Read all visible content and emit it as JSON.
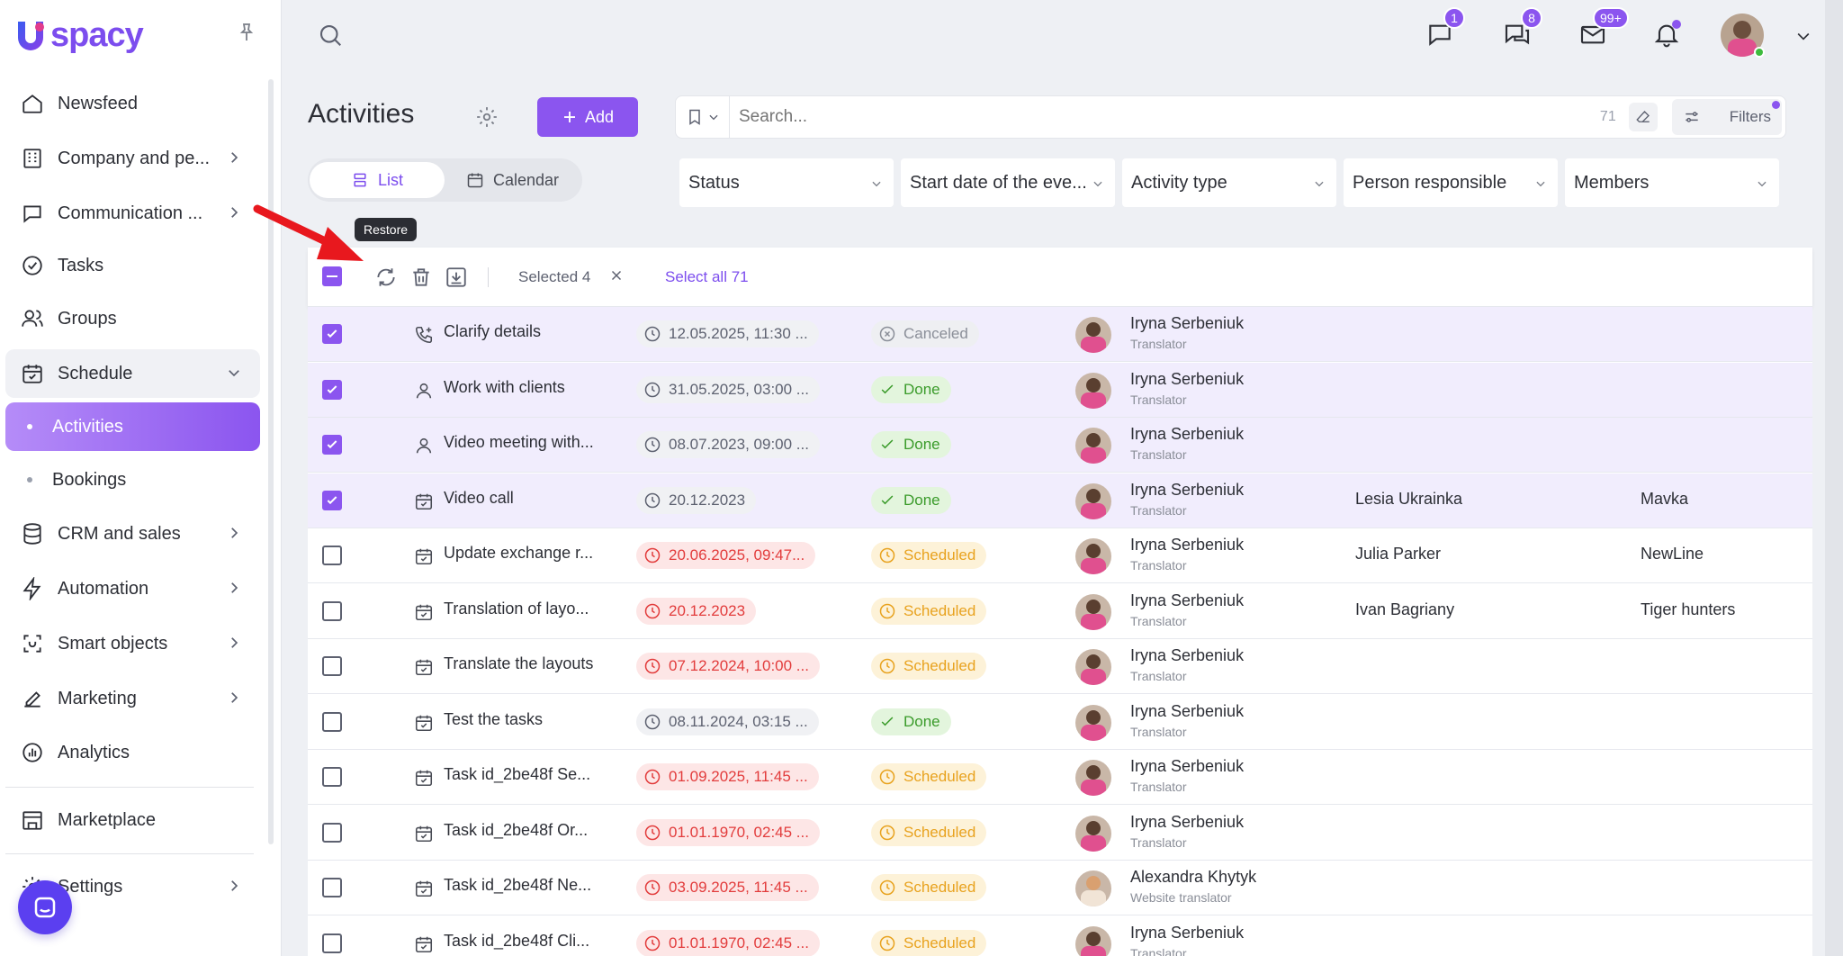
{
  "brand": {
    "logo_text": "spacy"
  },
  "sidebar": {
    "items": [
      {
        "label": "Newsfeed",
        "icon": "home-icon"
      },
      {
        "label": "Company and pe...",
        "icon": "building-icon"
      },
      {
        "label": "Communication ...",
        "icon": "chat-icon"
      },
      {
        "label": "Tasks",
        "icon": "check-circle-icon"
      },
      {
        "label": "Groups",
        "icon": "users-icon"
      },
      {
        "label": "Schedule",
        "icon": "calendar-icon"
      },
      {
        "label": "CRM and sales",
        "icon": "database-icon"
      },
      {
        "label": "Automation",
        "icon": "bolt-icon"
      },
      {
        "label": "Smart objects",
        "icon": "scan-icon"
      },
      {
        "label": "Marketing",
        "icon": "megaphone-icon"
      },
      {
        "label": "Analytics",
        "icon": "chart-icon"
      },
      {
        "label": "Marketplace",
        "icon": "store-icon"
      },
      {
        "label": "Settings",
        "icon": "gear-icon"
      }
    ],
    "schedule_sub": [
      {
        "label": "Activities",
        "active": true
      },
      {
        "label": "Bookings",
        "active": false
      }
    ]
  },
  "topbar": {
    "chat_badge": "1",
    "messages_badge": "8",
    "mail_badge": "99+"
  },
  "page": {
    "title": "Activities",
    "add_label": "Add",
    "search_placeholder": "Search...",
    "search_count": "71",
    "filters_label": "Filters",
    "view_tabs": [
      "List",
      "Calendar"
    ],
    "filters": [
      "Status",
      "Start date of the eve...",
      "Activity type",
      "Person responsible",
      "Members"
    ]
  },
  "toolbar": {
    "tooltip": "Restore",
    "selected_label": "Selected 4",
    "select_all_label": "Select all 71"
  },
  "colors": {
    "accent": "#8b55ef",
    "done": "#3a9b2a",
    "scheduled": "#e8a21e",
    "overdue": "#e23c3c"
  },
  "rows": [
    {
      "selected": true,
      "icon": "phone-icon",
      "name": "Clarify details",
      "date": "12.05.2025, 11:30 ...",
      "overdue": false,
      "status": "Canceled",
      "person": "Iryna Serbeniuk",
      "role": "Translator",
      "contact": "",
      "company": ""
    },
    {
      "selected": true,
      "icon": "person-icon",
      "name": "Work with clients",
      "date": "31.05.2025, 03:00 ...",
      "overdue": false,
      "status": "Done",
      "person": "Iryna Serbeniuk",
      "role": "Translator",
      "contact": "",
      "company": ""
    },
    {
      "selected": true,
      "icon": "person-icon",
      "name": "Video meeting with...",
      "date": "08.07.2023, 09:00 ...",
      "overdue": false,
      "status": "Done",
      "person": "Iryna Serbeniuk",
      "role": "Translator",
      "contact": "",
      "company": ""
    },
    {
      "selected": true,
      "icon": "calendar-check-icon",
      "name": "Video call",
      "date": "20.12.2023",
      "overdue": false,
      "status": "Done",
      "person": "Iryna Serbeniuk",
      "role": "Translator",
      "contact": "Lesia Ukrainka",
      "company": "Mavka"
    },
    {
      "selected": false,
      "icon": "calendar-check-icon",
      "name": "Update exchange r...",
      "date": "20.06.2025, 09:47...",
      "overdue": true,
      "status": "Scheduled",
      "person": "Iryna Serbeniuk",
      "role": "Translator",
      "contact": "Julia Parker",
      "company": "NewLine"
    },
    {
      "selected": false,
      "icon": "calendar-check-icon",
      "name": "Translation of layo...",
      "date": "20.12.2023",
      "overdue": true,
      "status": "Scheduled",
      "person": "Iryna Serbeniuk",
      "role": "Translator",
      "contact": "Ivan Bagriany",
      "company": "Tiger hunters"
    },
    {
      "selected": false,
      "icon": "calendar-check-icon",
      "name": "Translate the layouts",
      "date": "07.12.2024, 10:00 ...",
      "overdue": true,
      "status": "Scheduled",
      "person": "Iryna Serbeniuk",
      "role": "Translator",
      "contact": "",
      "company": ""
    },
    {
      "selected": false,
      "icon": "calendar-check-icon",
      "name": "Test the tasks",
      "date": "08.11.2024, 03:15 ...",
      "overdue": false,
      "status": "Done",
      "person": "Iryna Serbeniuk",
      "role": "Translator",
      "contact": "",
      "company": ""
    },
    {
      "selected": false,
      "icon": "calendar-check-icon",
      "name": "Task id_2be48f Se...",
      "date": "01.09.2025, 11:45 ...",
      "overdue": true,
      "status": "Scheduled",
      "person": "Iryna Serbeniuk",
      "role": "Translator",
      "contact": "",
      "company": ""
    },
    {
      "selected": false,
      "icon": "calendar-check-icon",
      "name": "Task id_2be48f Or...",
      "date": "01.01.1970, 02:45 ...",
      "overdue": true,
      "status": "Scheduled",
      "person": "Iryna Serbeniuk",
      "role": "Translator",
      "contact": "",
      "company": ""
    },
    {
      "selected": false,
      "icon": "calendar-check-icon",
      "name": "Task id_2be48f Ne...",
      "date": "03.09.2025, 11:45 ...",
      "overdue": true,
      "status": "Scheduled",
      "person": "Alexandra Khytyk",
      "role": "Website translator",
      "contact": "",
      "company": ""
    },
    {
      "selected": false,
      "icon": "calendar-check-icon",
      "name": "Task id_2be48f Cli...",
      "date": "01.01.1970, 02:45 ...",
      "overdue": true,
      "status": "Scheduled",
      "person": "Iryna Serbeniuk",
      "role": "Translator",
      "contact": "",
      "company": ""
    }
  ]
}
